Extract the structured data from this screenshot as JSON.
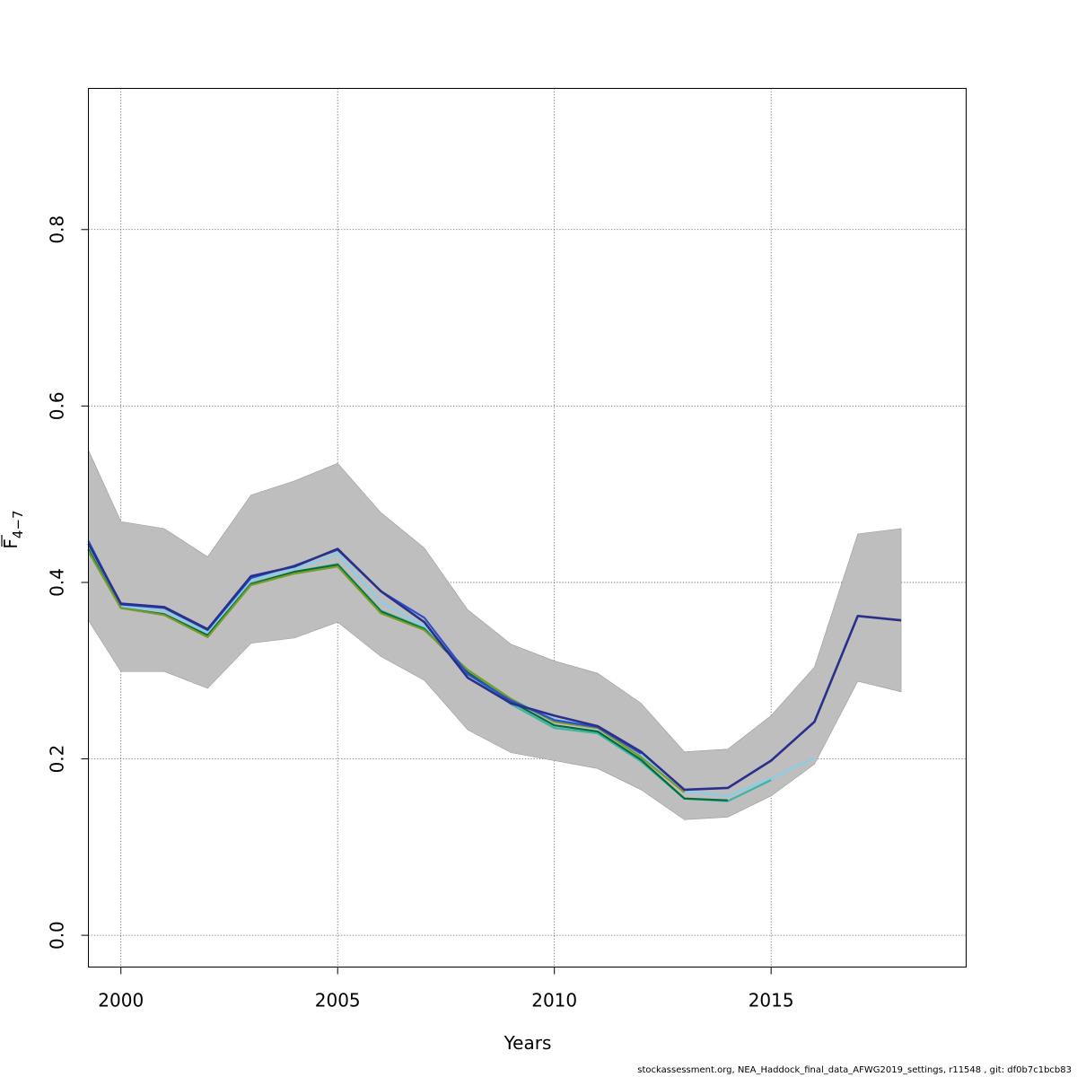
{
  "chart_data": {
    "type": "line",
    "xlabel": "Years",
    "ylabel_main": "F",
    "ylabel_sub": "4−7",
    "xlim": [
      1999.25,
      2019.5
    ],
    "ylim": [
      -0.036,
      0.96
    ],
    "x_ticks": [
      2000,
      2005,
      2010,
      2015
    ],
    "y_ticks": [
      0.0,
      0.2,
      0.4,
      0.6,
      0.8
    ],
    "y_tick_labels": [
      "0.0",
      "0.2",
      "0.4",
      "0.6",
      "0.8"
    ],
    "grid": true,
    "band": {
      "x": [
        1999.25,
        2000,
        2001,
        2002,
        2003,
        2004,
        2005,
        2006,
        2007,
        2008,
        2009,
        2010,
        2011,
        2012,
        2013,
        2014,
        2015,
        2016,
        2017,
        2018
      ],
      "upper": [
        0.55,
        0.469,
        0.461,
        0.429,
        0.499,
        0.515,
        0.535,
        0.479,
        0.439,
        0.369,
        0.33,
        0.311,
        0.297,
        0.263,
        0.208,
        0.211,
        0.249,
        0.304,
        0.455,
        0.461
      ],
      "lower": [
        0.357,
        0.299,
        0.299,
        0.28,
        0.331,
        0.337,
        0.355,
        0.316,
        0.289,
        0.233,
        0.207,
        0.198,
        0.189,
        0.165,
        0.131,
        0.134,
        0.158,
        0.194,
        0.288,
        0.276
      ]
    },
    "series": [
      {
        "color": "#000000",
        "dashed": true,
        "x": [
          2017,
          2018
        ],
        "values": [
          0.362,
          0.357
        ]
      },
      {
        "color": "#87ceeb",
        "x": [
          1999.25,
          2000,
          2001,
          2002,
          2003,
          2004,
          2005,
          2006,
          2007,
          2008,
          2009,
          2010,
          2011,
          2012,
          2013,
          2014,
          2015,
          2016
        ],
        "values": [
          0.438,
          0.373,
          0.368,
          0.343,
          0.403,
          0.415,
          0.432,
          0.378,
          0.35,
          0.298,
          0.268,
          0.245,
          0.236,
          0.205,
          0.163,
          0.158,
          0.178,
          0.201
        ]
      },
      {
        "color": "#3cb5a0",
        "x": [
          1999.25,
          2000,
          2001,
          2002,
          2003,
          2004,
          2005,
          2006,
          2007,
          2008,
          2009,
          2010,
          2011,
          2012,
          2013,
          2014,
          2015
        ],
        "values": [
          0.438,
          0.371,
          0.363,
          0.34,
          0.399,
          0.412,
          0.421,
          0.368,
          0.348,
          0.297,
          0.262,
          0.235,
          0.229,
          0.197,
          0.155,
          0.152,
          0.176
        ]
      },
      {
        "color": "#006d3c",
        "x": [
          1999.25,
          2000,
          2001,
          2002,
          2003,
          2004,
          2005,
          2006,
          2007,
          2008,
          2009,
          2010,
          2011,
          2012,
          2013,
          2014
        ],
        "values": [
          0.437,
          0.371,
          0.364,
          0.34,
          0.398,
          0.412,
          0.42,
          0.367,
          0.347,
          0.298,
          0.265,
          0.238,
          0.231,
          0.199,
          0.155,
          0.153
        ]
      },
      {
        "color": "#7a9a2a",
        "x": [
          1999.25,
          2000,
          2001,
          2002,
          2003,
          2004,
          2005,
          2006,
          2007,
          2008,
          2009,
          2010,
          2011,
          2012,
          2013
        ],
        "values": [
          0.435,
          0.371,
          0.363,
          0.338,
          0.397,
          0.41,
          0.418,
          0.365,
          0.346,
          0.301,
          0.268,
          0.242,
          0.235,
          0.202,
          0.162
        ]
      },
      {
        "color": "#2b50c8",
        "x": [
          1999.25,
          2000,
          2001,
          2002,
          2003,
          2004,
          2005,
          2006,
          2007,
          2008,
          2009,
          2010,
          2011,
          2012
        ],
        "values": [
          0.447,
          0.375,
          0.371,
          0.346,
          0.405,
          0.419,
          0.437,
          0.39,
          0.36,
          0.296,
          0.266,
          0.244,
          0.236,
          0.206
        ]
      },
      {
        "color": "#2a2f8c",
        "x": [
          1999.25,
          2000,
          2001,
          2002,
          2003,
          2004,
          2005,
          2006,
          2007,
          2008,
          2009,
          2010,
          2011,
          2012,
          2013,
          2014,
          2015,
          2016,
          2017,
          2018
        ],
        "values": [
          0.444,
          0.376,
          0.372,
          0.347,
          0.407,
          0.418,
          0.438,
          0.39,
          0.355,
          0.292,
          0.263,
          0.249,
          0.237,
          0.208,
          0.165,
          0.167,
          0.198,
          0.242,
          0.362,
          0.357
        ]
      }
    ]
  },
  "footer_text": "stockassessment.org, NEA_Haddock_final_data_AFWG2019_settings, r11548 , git: df0b7c1bcb83"
}
